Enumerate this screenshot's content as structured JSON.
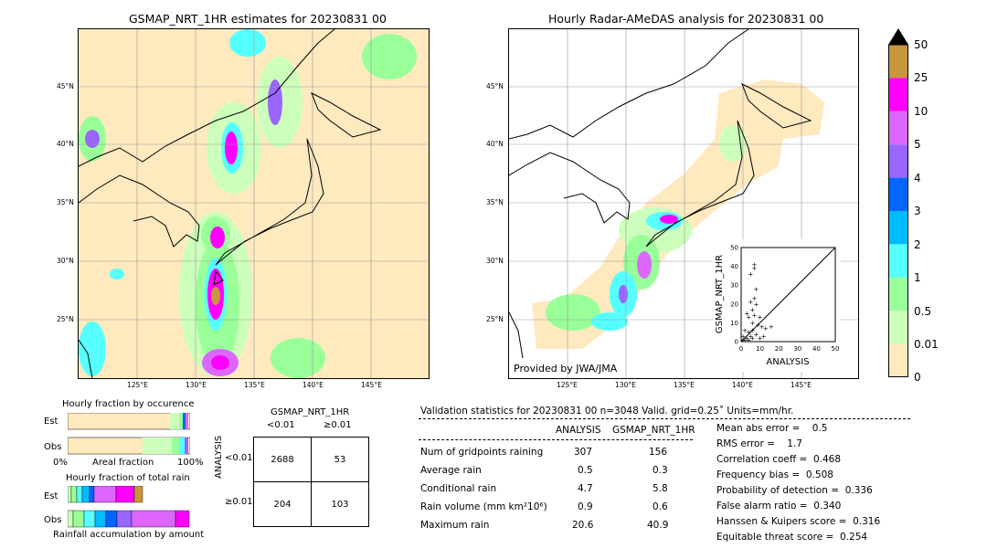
{
  "left_map": {
    "title": "GSMAP_NRT_1HR estimates for 20230831 00",
    "lat_labels": [
      "45°N",
      "40°N",
      "35°N",
      "30°N",
      "25°N"
    ],
    "lon_labels": [
      "125°E",
      "130°E",
      "135°E",
      "140°E",
      "145°E"
    ]
  },
  "right_map": {
    "title": "Hourly Radar-AMeDAS analysis for 20230831 00",
    "lat_labels": [
      "45°N",
      "40°N",
      "35°N",
      "30°N",
      "25°N"
    ],
    "lon_labels": [
      "125°E",
      "130°E",
      "135°E",
      "140°E",
      "145°E"
    ],
    "credit": "Provided by JWA/JMA"
  },
  "scatter": {
    "xlabel": "ANALYSIS",
    "ylabel": "GSMAP_NRT_1HR",
    "ticks": [
      "0",
      "10",
      "20",
      "30",
      "40",
      "50"
    ]
  },
  "colorbar": {
    "labels": [
      "50",
      "25",
      "10",
      "5",
      "4",
      "3",
      "2",
      "1",
      "0.5",
      "0.01",
      "0"
    ],
    "colors": [
      "#c8963c",
      "#ff00ff",
      "#dd66ff",
      "#9966ff",
      "#0066ff",
      "#00bbff",
      "#55ffff",
      "#99ff99",
      "#ccffbb",
      "#ffe9bf"
    ],
    "extend_color": "#000000"
  },
  "occurrence": {
    "title": "Hourly fraction by occurence",
    "row_labels": [
      "Est",
      "Obs"
    ],
    "xlabel": "Areal fraction",
    "x_min": "0%",
    "x_max": "100%"
  },
  "total_rain": {
    "title": "Hourly fraction of total rain",
    "row_labels": [
      "Est",
      "Obs"
    ],
    "xlabel": "Rainfall accumulation by amount"
  },
  "contingency": {
    "col_header": "GSMAP_NRT_1HR",
    "col_labels": [
      "<0.01",
      "≥0.01"
    ],
    "row_header": "ANALYSIS",
    "row_labels": [
      "<0.01",
      "≥0.01"
    ],
    "cells": [
      [
        "2688",
        "53"
      ],
      [
        "204",
        "103"
      ]
    ]
  },
  "validation": {
    "header": "Validation statistics for 20230831 00  n=3048 Valid. grid=0.25˚ Units=mm/hr.",
    "col_analysis": "ANALYSIS",
    "col_gsmap": "GSMAP_NRT_1HR",
    "rows": [
      {
        "label": "Num of gridpoints raining",
        "analysis": "307",
        "gsmap": "156"
      },
      {
        "label": "Average rain",
        "analysis": "0.5",
        "gsmap": "0.3"
      },
      {
        "label": "Conditional rain",
        "analysis": "4.7",
        "gsmap": "5.8"
      },
      {
        "label": "Rain volume (mm km²10⁶)",
        "analysis": "0.9",
        "gsmap": "0.6"
      },
      {
        "label": "Maximum rain",
        "analysis": "20.6",
        "gsmap": "40.9"
      }
    ],
    "scores": [
      "Mean abs error =    0.5",
      "RMS error =    1.7",
      "Correlation coeff =  0.468",
      "Frequency bias =  0.508",
      "Probability of detection =  0.336",
      "False alarm ratio =  0.340",
      "Hanssen & Kuipers score =  0.316",
      "Equitable threat score =  0.254"
    ]
  },
  "chart_data": {
    "type": "scatter",
    "xlabel": "ANALYSIS",
    "ylabel": "GSMAP_NRT_1HR",
    "xlim": [
      0,
      50
    ],
    "ylim": [
      0,
      50
    ],
    "points": [
      [
        7,
        41
      ],
      [
        7,
        39
      ],
      [
        5,
        36
      ],
      [
        8,
        28
      ],
      [
        7,
        23
      ],
      [
        5,
        21
      ],
      [
        8,
        20
      ],
      [
        6,
        17
      ],
      [
        3,
        15
      ],
      [
        4,
        13
      ],
      [
        7,
        14
      ],
      [
        10,
        13
      ],
      [
        6,
        10
      ],
      [
        9,
        9
      ],
      [
        11,
        8
      ],
      [
        13,
        7
      ],
      [
        16,
        8
      ],
      [
        2,
        6
      ],
      [
        4,
        5
      ],
      [
        6,
        6
      ],
      [
        8,
        4
      ],
      [
        1,
        3
      ],
      [
        3,
        2
      ],
      [
        5,
        3
      ],
      [
        2,
        1
      ],
      [
        4,
        1
      ],
      [
        6,
        2
      ],
      [
        10,
        2
      ],
      [
        12,
        3
      ],
      [
        1,
        1
      ]
    ]
  }
}
